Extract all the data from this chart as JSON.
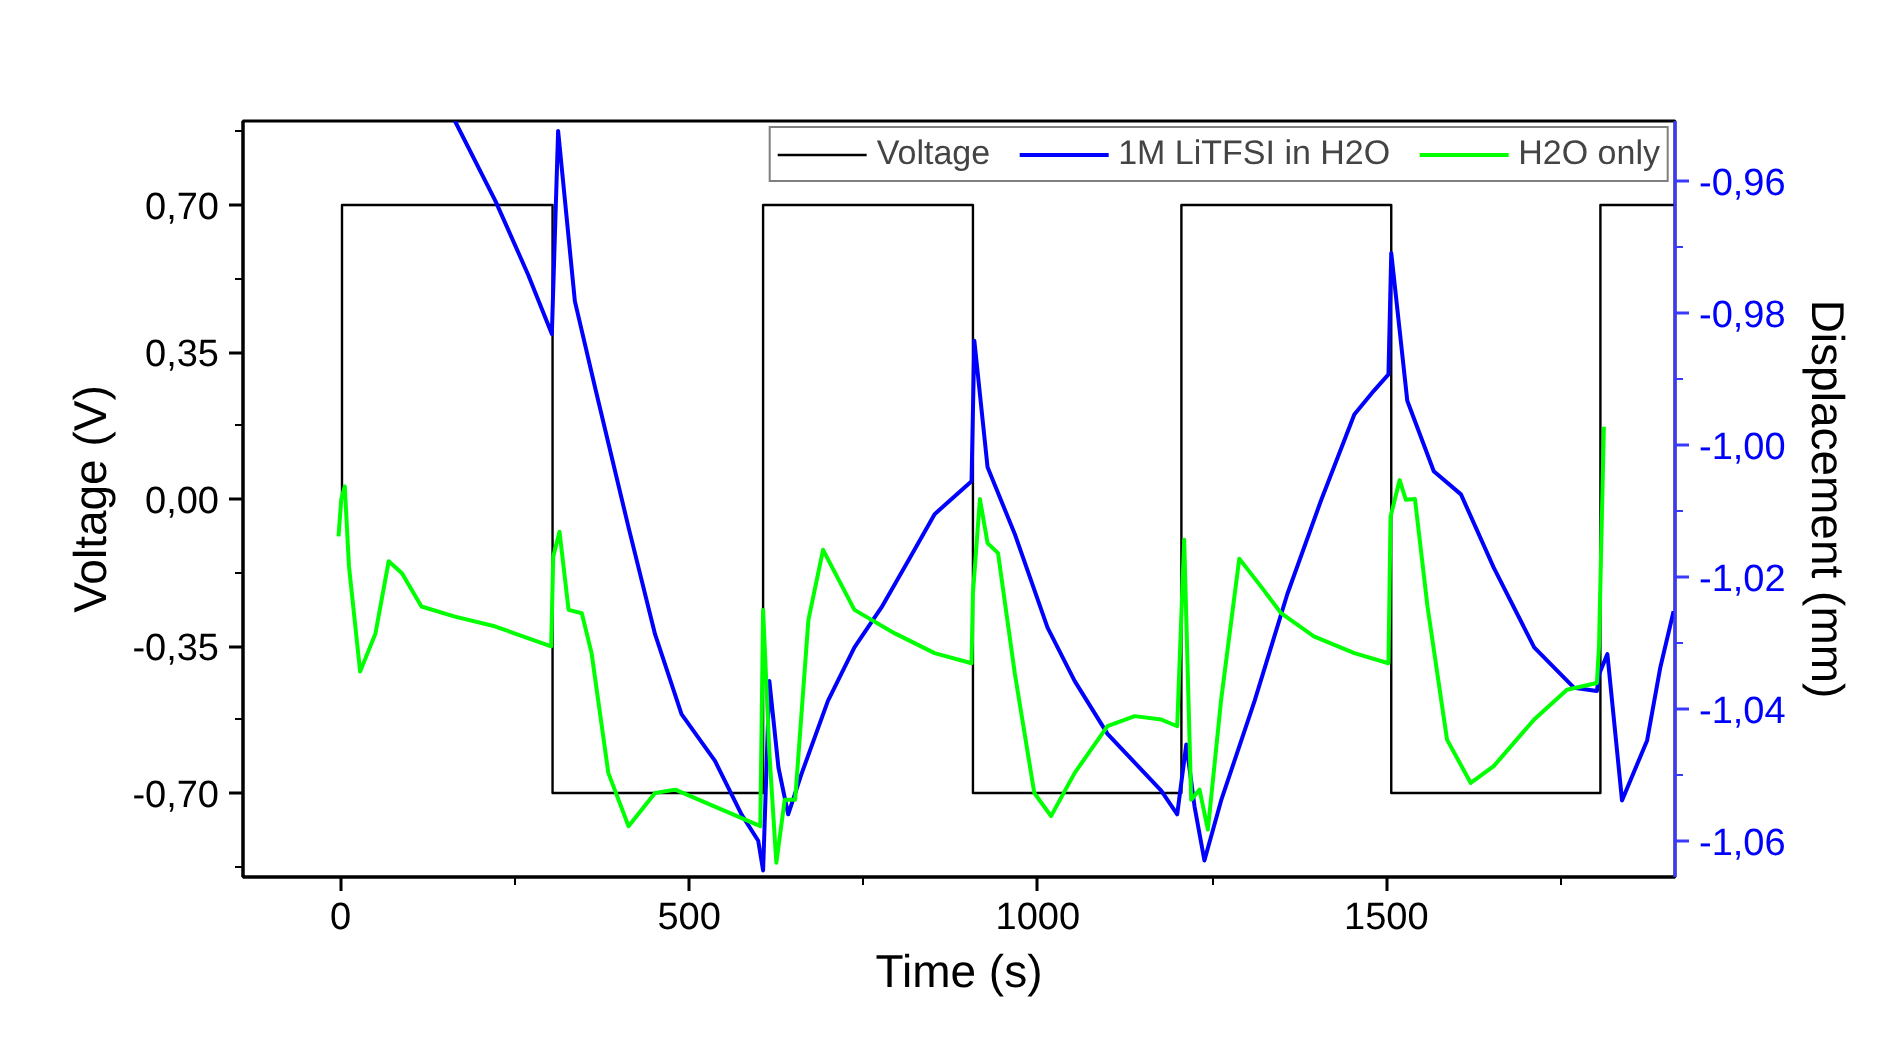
{
  "chart_data": {
    "type": "line",
    "xlabel": "Time (s)",
    "ylabel": "Voltage (V)",
    "y2label": "Displacement (mm)",
    "xlim": [
      -140,
      1914
    ],
    "xticks": [
      0,
      500,
      1000,
      1500
    ],
    "ylim": [
      -0.9,
      0.9
    ],
    "yticks": [
      {
        "value": -0.7,
        "label": "-0,70"
      },
      {
        "value": -0.35,
        "label": "-0,35"
      },
      {
        "value": 0,
        "label": "0,00"
      },
      {
        "value": 0.35,
        "label": "0,35"
      },
      {
        "value": 0.7,
        "label": "0,70"
      }
    ],
    "y2lim": [
      -1.0655,
      -0.9509
    ],
    "y2ticks": [
      {
        "value": -1.06,
        "label": "-1,06"
      },
      {
        "value": -1.04,
        "label": "-1,04"
      },
      {
        "value": -1.02,
        "label": "-1,02"
      },
      {
        "value": -1.0,
        "label": "-1,00"
      },
      {
        "value": -0.98,
        "label": "-0,98"
      },
      {
        "value": -0.96,
        "label": "-0,96"
      }
    ],
    "grid": false,
    "legend": "top right",
    "series": [
      {
        "name": "Voltage",
        "color": "#000000",
        "x": [
          2,
          2,
          304,
          304,
          606,
          606,
          907,
          907,
          1206,
          1206,
          1507,
          1507,
          1807,
          1807,
          1914
        ],
        "values": [
          0,
          0.7,
          0.7,
          -0.7,
          -0.7,
          0.7,
          0.7,
          -0.7,
          -0.7,
          0.7,
          0.7,
          -0.7,
          -0.7,
          0.7,
          0.7
        ]
      },
      {
        "name": "1M LiTFSI in H2O",
        "color": "#0000ff",
        "axis": "y2",
        "x": [
          164,
          222,
          269,
          303,
          312,
          336,
          365,
          413,
          451,
          489,
          537,
          575,
          599,
          606,
          615,
          628,
          642,
          661,
          699,
          737,
          776,
          814,
          852,
          905,
          909,
          928,
          967,
          1014,
          1053,
          1100,
          1177,
          1200,
          1213,
          1225,
          1239,
          1263,
          1311,
          1358,
          1406,
          1454,
          1482,
          1503,
          1507,
          1530,
          1568,
          1607,
          1654,
          1712,
          1769,
          1802,
          1805,
          1817,
          1838,
          1874,
          1893,
          1912
        ],
        "values": [
          -0.9509,
          -0.963,
          -0.9742,
          -0.9832,
          -0.9524,
          -0.9782,
          -0.9913,
          -1.0125,
          -1.0287,
          -1.0408,
          -1.0479,
          -1.056,
          -1.06,
          -1.0645,
          -1.0358,
          -1.0489,
          -1.056,
          -1.0499,
          -1.0388,
          -1.0307,
          -1.0246,
          -1.0176,
          -1.0105,
          -1.0055,
          -0.9842,
          -1.0034,
          -1.0135,
          -1.0277,
          -1.0358,
          -1.0438,
          -1.0524,
          -1.056,
          -1.0454,
          -1.0549,
          -1.063,
          -1.0539,
          -1.0388,
          -1.0226,
          -1.0085,
          -0.9954,
          -0.9918,
          -0.9893,
          -0.9709,
          -0.9933,
          -1.004,
          -1.0075,
          -1.0186,
          -1.0307,
          -1.0368,
          -1.0373,
          -1.0348,
          -1.0317,
          -1.0539,
          -1.0448,
          -1.0337,
          -1.0252
        ]
      },
      {
        "name": "H2O only",
        "color": "#00ff00",
        "x": [
          -3,
          1,
          6,
          12,
          28,
          50,
          69,
          88,
          116,
          164,
          221,
          302,
          305,
          314,
          327,
          346,
          360,
          384,
          413,
          451,
          480,
          546,
          602,
          606,
          615,
          625,
          637,
          652,
          671,
          692,
          737,
          795,
          852,
          905,
          907,
          917,
          928,
          943,
          967,
          995,
          1019,
          1053,
          1100,
          1139,
          1177,
          1200,
          1210,
          1220,
          1232,
          1244,
          1263,
          1289,
          1320,
          1349,
          1396,
          1454,
          1503,
          1506,
          1519,
          1528,
          1541,
          1559,
          1587,
          1621,
          1654,
          1712,
          1759,
          1802,
          1805,
          1812
        ],
        "values": [
          -0.089,
          0.0,
          0.03,
          -0.16,
          -0.411,
          -0.32,
          -0.148,
          -0.177,
          -0.256,
          -0.28,
          -0.303,
          -0.351,
          -0.137,
          -0.078,
          -0.264,
          -0.272,
          -0.367,
          -0.652,
          -0.779,
          -0.7,
          -0.692,
          -0.739,
          -0.779,
          -0.264,
          -0.605,
          -0.866,
          -0.716,
          -0.716,
          -0.288,
          -0.121,
          -0.264,
          -0.32,
          -0.367,
          -0.391,
          -0.224,
          0.0,
          -0.105,
          -0.129,
          -0.415,
          -0.7,
          -0.755,
          -0.652,
          -0.541,
          -0.517,
          -0.525,
          -0.541,
          -0.097,
          -0.716,
          -0.692,
          -0.787,
          -0.478,
          -0.142,
          -0.208,
          -0.272,
          -0.327,
          -0.367,
          -0.391,
          -0.042,
          0.045,
          -0.002,
          0.0,
          -0.256,
          -0.573,
          -0.676,
          -0.636,
          -0.525,
          -0.454,
          -0.438,
          -0.351,
          0.172
        ]
      }
    ]
  }
}
